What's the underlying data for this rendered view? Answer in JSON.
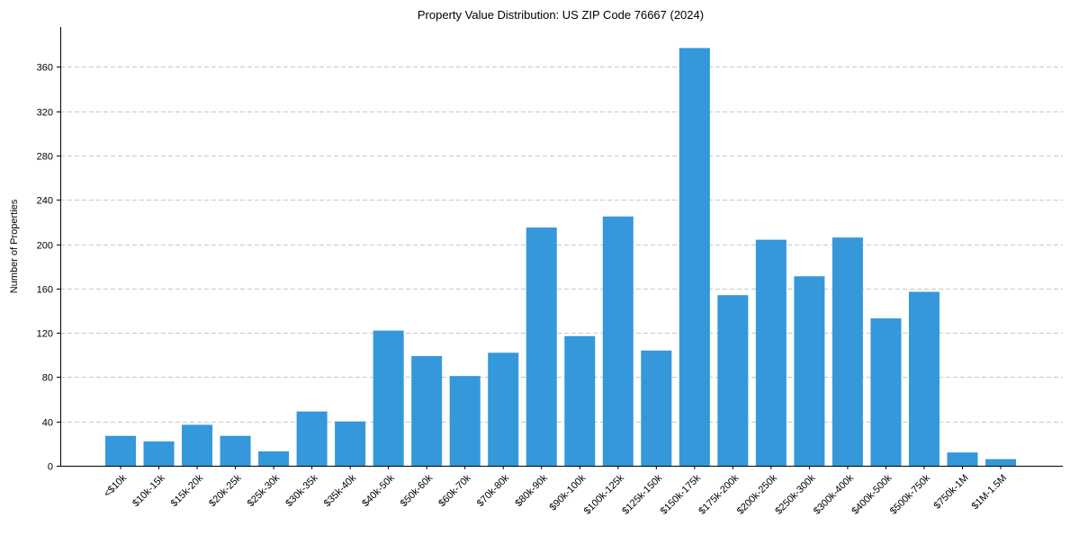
{
  "chart_data": {
    "type": "bar",
    "title": "Property Value Distribution: US ZIP Code 76667 (2024)",
    "xlabel": "",
    "ylabel": "Number of Properties",
    "categories": [
      "<$10k",
      "$10k-15k",
      "$15k-20k",
      "$20k-25k",
      "$25k-30k",
      "$30k-35k",
      "$35k-40k",
      "$40k-50k",
      "$50k-60k",
      "$60k-70k",
      "$70k-80k",
      "$80k-90k",
      "$90k-100k",
      "$100k-125k",
      "$125k-150k",
      "$150k-175k",
      "$175k-200k",
      "$200k-250k",
      "$250k-300k",
      "$300k-400k",
      "$400k-500k",
      "$500k-750k",
      "$750k-1M",
      "$1M-1.5M"
    ],
    "values": [
      27,
      22,
      37,
      27,
      13,
      49,
      40,
      122,
      99,
      81,
      102,
      215,
      117,
      225,
      104,
      377,
      154,
      204,
      171,
      206,
      133,
      157,
      12,
      6
    ],
    "ylim": [
      0,
      396
    ],
    "yticks": [
      0,
      40,
      80,
      120,
      160,
      200,
      240,
      280,
      320,
      360
    ],
    "grid": "y-dashed",
    "color": "#3498db"
  }
}
